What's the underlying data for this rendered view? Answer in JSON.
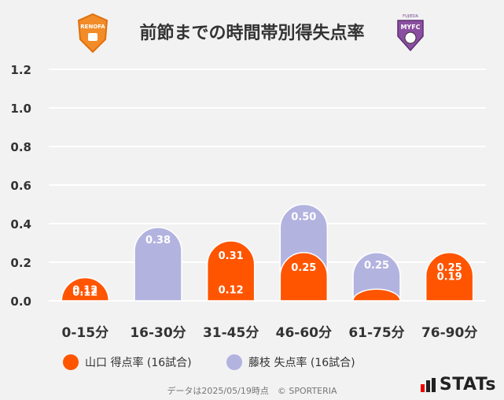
{
  "header": {
    "title": "前節までの時間帯別得失点率",
    "home_logo_text": "RENOFA",
    "away_logo_text": "FUJIEDA MYFC"
  },
  "legend": {
    "home": "山口 得点率 (16試合)",
    "away": "藤枝 失点率 (16試合)"
  },
  "footer": {
    "note": "データは2025/05/19時点　© SPORTERIA",
    "brand": "STATs"
  },
  "colors": {
    "home": "#ff5500",
    "away": "#b3b3e0",
    "background": "#f2f2f2",
    "grid": "#ffffff"
  },
  "chart_data": {
    "type": "bar",
    "categories": [
      "0-15分",
      "16-30分",
      "31-45分",
      "46-60分",
      "61-75分",
      "76-90分"
    ],
    "series": [
      {
        "name": "山口 得点率 (16試合)",
        "values": [
          0.12,
          0.0,
          0.31,
          0.25,
          0.06,
          0.25
        ],
        "labels": [
          "0.12",
          "",
          "0.31",
          "0.25",
          "",
          "0.25"
        ]
      },
      {
        "name": "藤枝 失点率 (16試合)",
        "values": [
          0.12,
          0.38,
          0.12,
          0.5,
          0.25,
          0.19
        ],
        "labels": [
          "0.12",
          "0.38",
          "0.12",
          "0.50",
          "0.25",
          "0.19"
        ]
      }
    ],
    "yticks": [
      "0.0",
      "0.2",
      "0.4",
      "0.6",
      "0.8",
      "1.0",
      "1.2"
    ],
    "ylim": [
      0,
      1.2
    ],
    "grid": true,
    "legend_position": "bottom"
  }
}
